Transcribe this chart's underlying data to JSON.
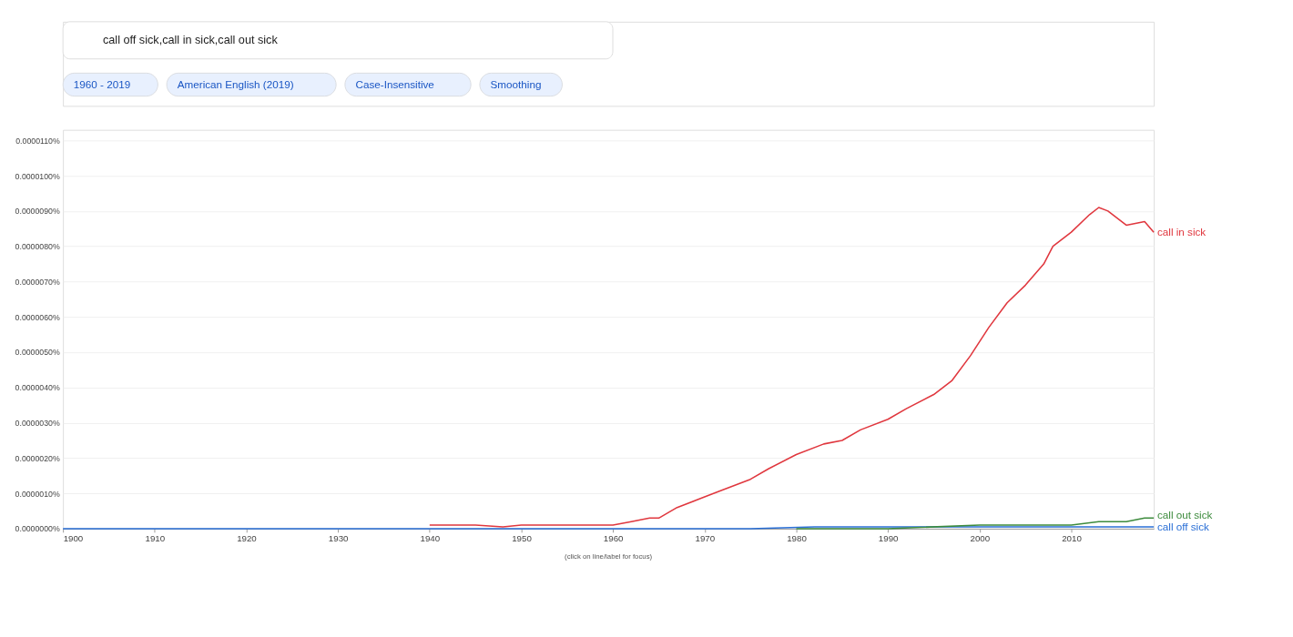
{
  "chart_data": {
    "type": "line",
    "title": "call off sick,call in sick,call out sick",
    "annotations": [
      "1960 - 2019",
      "American English (2019)",
      "Case-Insensitive",
      "Smoothing",
      "(click on line/label for focus)"
    ],
    "xlim": [
      1900,
      2019
    ],
    "xticks": [
      1900,
      1910,
      1920,
      1930,
      1940,
      1950,
      1960,
      1970,
      1980,
      1990,
      2000,
      2010
    ],
    "ylim": [
      0,
      1.13e-05
    ],
    "yticks": [
      {
        "value": 0,
        "label": "0.0000000%"
      },
      {
        "value": 1e-06,
        "label": "0.0000010%"
      },
      {
        "value": 2e-06,
        "label": "0.0000020%"
      },
      {
        "value": 3e-06,
        "label": "0.0000030%"
      },
      {
        "value": 4e-06,
        "label": "0.0000040%"
      },
      {
        "value": 5e-06,
        "label": "0.0000050%"
      },
      {
        "value": 6e-06,
        "label": "0.0000060%"
      },
      {
        "value": 7e-06,
        "label": "0.0000070%"
      },
      {
        "value": 8e-06,
        "label": "0.0000080%"
      },
      {
        "value": 9e-06,
        "label": "0.0000090%"
      },
      {
        "value": 1e-05,
        "label": "0.0000100%"
      },
      {
        "value": 1.1e-05,
        "label": "0.0000110%"
      }
    ],
    "grid": "y",
    "legend": false,
    "marker": "none",
    "line_style": "solid",
    "series": [
      {
        "name": "call off sick",
        "color": "#2a6fd6",
        "x": [
          1900,
          1925,
          1975,
          1982,
          2019
        ],
        "values": [
          0,
          0,
          0,
          5e-08,
          5e-08
        ]
      },
      {
        "name": "call in sick",
        "color": "#e0373e",
        "x": [
          1940,
          1942,
          1945,
          1948,
          1950,
          1953,
          1956,
          1960,
          1962,
          1964,
          1965,
          1967,
          1970,
          1972,
          1975,
          1977,
          1980,
          1983,
          1985,
          1987,
          1990,
          1992,
          1995,
          1997,
          1999,
          2001,
          2003,
          2005,
          2007,
          2008,
          2010,
          2012,
          2013,
          2014,
          2016,
          2018,
          2019
        ],
        "values": [
          1e-07,
          1e-07,
          1e-07,
          5e-08,
          1e-07,
          1e-07,
          1e-07,
          1e-07,
          2e-07,
          3e-07,
          3e-07,
          6e-07,
          9e-07,
          1.1e-06,
          1.4e-06,
          1.7e-06,
          2.1e-06,
          2.4e-06,
          2.5e-06,
          2.8e-06,
          3.1e-06,
          3.4e-06,
          3.8e-06,
          4.2e-06,
          4.9e-06,
          5.7e-06,
          6.4e-06,
          6.9e-06,
          7.5e-06,
          8e-06,
          8.4e-06,
          8.9e-06,
          9.1e-06,
          9e-06,
          8.6e-06,
          8.7e-06,
          8.4e-06
        ]
      },
      {
        "name": "call out sick",
        "color": "#3d8b3d",
        "x": [
          1980,
          1990,
          2000,
          2005,
          2010,
          2013,
          2016,
          2018,
          2019
        ],
        "values": [
          0,
          0,
          1e-07,
          1e-07,
          1e-07,
          2e-07,
          2e-07,
          3e-07,
          3e-07
        ]
      }
    ]
  }
}
